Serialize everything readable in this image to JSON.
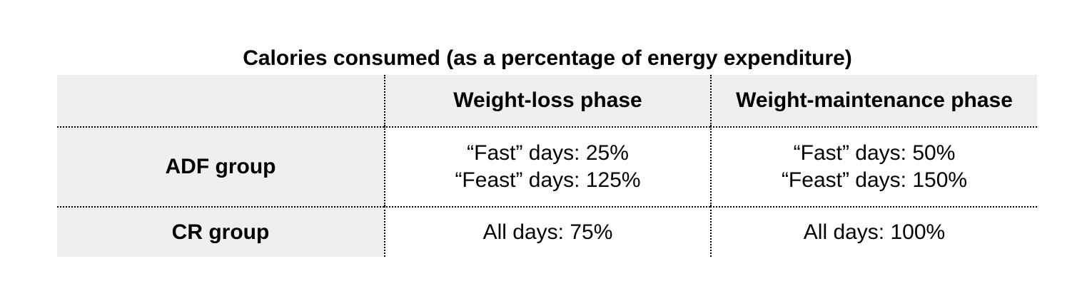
{
  "title": "Calories consumed (as a percentage of energy expenditure)",
  "table": {
    "header": {
      "corner": "",
      "col1": "Weight-loss phase",
      "col2": "Weight-maintenance phase"
    },
    "rows": [
      {
        "label": "ADF group",
        "col1": [
          "“Fast” days: 25%",
          "“Feast” days: 125%"
        ],
        "col2": [
          "“Fast” days: 50%",
          "“Feast” days: 150%"
        ]
      },
      {
        "label": "CR group",
        "col1": [
          "All days: 75%"
        ],
        "col2": [
          "All days: 100%"
        ]
      }
    ]
  },
  "colors": {
    "shade": "#efefef",
    "border": "#000000"
  }
}
